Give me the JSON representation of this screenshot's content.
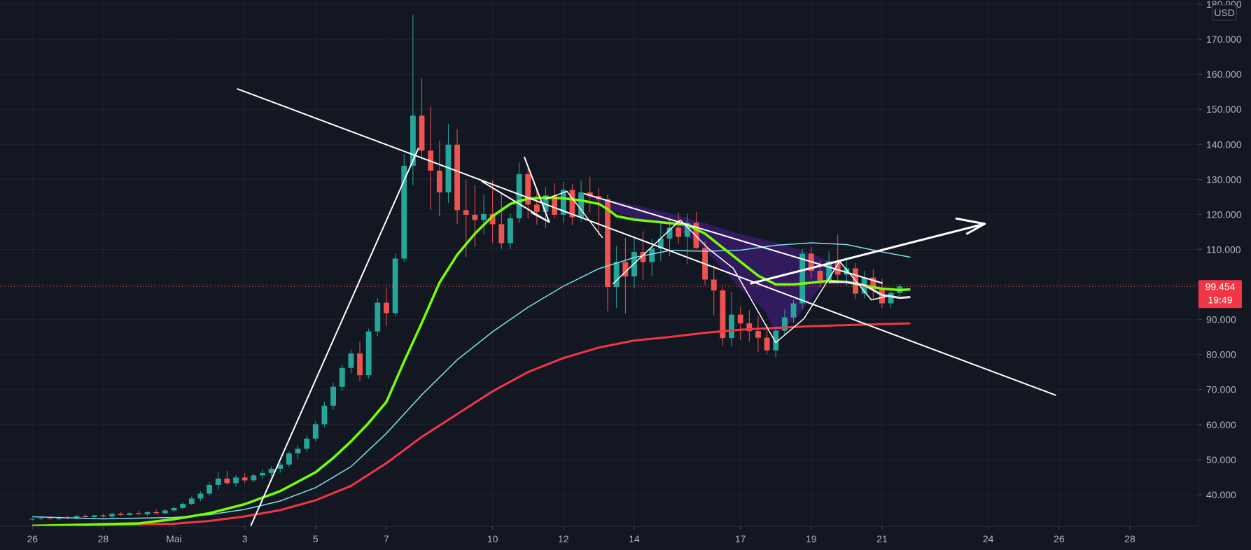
{
  "chart_data": {
    "type": "candlestick",
    "currency": "USD",
    "price_axis": {
      "min": 31000,
      "max": 180000,
      "ticks": [
        40000,
        50000,
        60000,
        70000,
        80000,
        90000,
        100000,
        110000,
        120000,
        130000,
        140000,
        150000,
        160000,
        170000,
        180000
      ],
      "tick_labels": [
        "40.000",
        "50.000",
        "60.000",
        "70.000",
        "80.000",
        "90.000",
        "100.000",
        "110.000",
        "120.000",
        "130.000",
        "140.000",
        "150.000",
        "160.000",
        "170.000",
        "180.000"
      ]
    },
    "time_axis": {
      "min": -4.4,
      "max": 28.8,
      "ticks": [
        {
          "t": -4,
          "label": "26"
        },
        {
          "t": -2,
          "label": "28"
        },
        {
          "t": 0,
          "label": "Mai"
        },
        {
          "t": 2,
          "label": "3"
        },
        {
          "t": 4,
          "label": "5"
        },
        {
          "t": 6,
          "label": "7"
        },
        {
          "t": 9,
          "label": "10"
        },
        {
          "t": 11,
          "label": "12"
        },
        {
          "t": 13,
          "label": "14"
        },
        {
          "t": 16,
          "label": "17"
        },
        {
          "t": 18,
          "label": "19"
        },
        {
          "t": 20,
          "label": "21"
        },
        {
          "t": 23,
          "label": "24"
        },
        {
          "t": 25,
          "label": "26"
        },
        {
          "t": 27,
          "label": "28"
        }
      ]
    },
    "last_price": {
      "value": 99454,
      "label": "99.454",
      "countdown": "19:49"
    },
    "colors": {
      "up": "#26a69a",
      "down": "#ef5350",
      "ma_fast": "#76ff03",
      "ma_mid": "#80deea",
      "ma_slow": "#f23645",
      "drawing": "#ffffff",
      "pattern_fill": "#3a1d6e"
    },
    "grid": true,
    "candles": [
      [
        -4.0,
        33000,
        33400,
        32600,
        33100
      ],
      [
        -3.75,
        33100,
        33600,
        32700,
        33300
      ],
      [
        -3.5,
        33300,
        33800,
        32900,
        33100
      ],
      [
        -3.25,
        33100,
        33700,
        32800,
        33500
      ],
      [
        -3.0,
        33500,
        34000,
        33000,
        33300
      ],
      [
        -2.75,
        33300,
        34100,
        33000,
        33900
      ],
      [
        -2.5,
        33900,
        34400,
        33400,
        33600
      ],
      [
        -2.25,
        33600,
        34300,
        33200,
        34100
      ],
      [
        -2.0,
        34100,
        34600,
        33500,
        33800
      ],
      [
        -1.75,
        33800,
        34800,
        33400,
        34500
      ],
      [
        -1.5,
        34500,
        35100,
        34000,
        34200
      ],
      [
        -1.25,
        34200,
        35000,
        33800,
        34700
      ],
      [
        -1.0,
        34700,
        35400,
        34200,
        34400
      ],
      [
        -0.75,
        34400,
        35300,
        34000,
        35000
      ],
      [
        -0.5,
        35000,
        35700,
        34500,
        34700
      ],
      [
        -0.25,
        34700,
        35900,
        34400,
        35500
      ],
      [
        0.0,
        35500,
        36600,
        35100,
        36200
      ],
      [
        0.25,
        36200,
        37900,
        35900,
        37400
      ],
      [
        0.5,
        37400,
        39500,
        37000,
        38900
      ],
      [
        0.75,
        38900,
        41000,
        38200,
        40300
      ],
      [
        1.0,
        40300,
        43500,
        39700,
        42800
      ],
      [
        1.25,
        42800,
        46500,
        41500,
        44600
      ],
      [
        1.5,
        44600,
        46900,
        42800,
        43300
      ],
      [
        1.75,
        43300,
        45600,
        42300,
        44900
      ],
      [
        2.0,
        44900,
        46200,
        43400,
        44100
      ],
      [
        2.25,
        44100,
        46000,
        43500,
        45500
      ],
      [
        2.5,
        45500,
        47200,
        44600,
        46200
      ],
      [
        2.75,
        46200,
        48100,
        45200,
        47400
      ],
      [
        3.0,
        47400,
        49400,
        46300,
        48600
      ],
      [
        3.25,
        48600,
        52400,
        47900,
        51800
      ],
      [
        3.5,
        51800,
        54200,
        50100,
        53100
      ],
      [
        3.75,
        53100,
        56800,
        52300,
        56000
      ],
      [
        4.0,
        56000,
        61000,
        55200,
        60100
      ],
      [
        4.25,
        60100,
        66500,
        59300,
        65400
      ],
      [
        4.5,
        65400,
        71900,
        64200,
        70800
      ],
      [
        4.75,
        70800,
        77100,
        69600,
        76200
      ],
      [
        5.0,
        76200,
        81400,
        74700,
        80300
      ],
      [
        5.25,
        80300,
        83700,
        72400,
        74100
      ],
      [
        5.5,
        74100,
        87400,
        73200,
        86600
      ],
      [
        5.75,
        86600,
        96100,
        85200,
        94800
      ],
      [
        6.0,
        94800,
        99100,
        88200,
        91800
      ],
      [
        6.25,
        91800,
        108800,
        90900,
        107400
      ],
      [
        6.5,
        107400,
        137200,
        106400,
        133900
      ],
      [
        6.75,
        133900,
        177000,
        128300,
        148200
      ],
      [
        7.0,
        148200,
        158900,
        135600,
        138200
      ],
      [
        7.25,
        138200,
        150800,
        121300,
        132500
      ],
      [
        7.5,
        132500,
        141100,
        119500,
        126300
      ],
      [
        7.75,
        126300,
        145800,
        123300,
        139900
      ],
      [
        8.0,
        139900,
        144400,
        117300,
        121200
      ],
      [
        8.25,
        121200,
        129800,
        107800,
        119900
      ],
      [
        8.5,
        119900,
        128400,
        110700,
        118400
      ],
      [
        8.75,
        118400,
        125600,
        114400,
        120100
      ],
      [
        9.0,
        120100,
        129800,
        111800,
        117200
      ],
      [
        9.25,
        117200,
        125800,
        110200,
        111800
      ],
      [
        9.5,
        111800,
        120300,
        110100,
        118900
      ],
      [
        9.75,
        118900,
        134800,
        117500,
        131500
      ],
      [
        10.0,
        131500,
        133900,
        118700,
        122800
      ],
      [
        10.25,
        122800,
        126900,
        117100,
        120700
      ],
      [
        10.5,
        120700,
        127800,
        116100,
        125400
      ],
      [
        10.75,
        125400,
        128900,
        118900,
        119900
      ],
      [
        11.0,
        119900,
        129300,
        117600,
        127000
      ],
      [
        11.25,
        127000,
        128600,
        116900,
        119200
      ],
      [
        11.5,
        119200,
        129600,
        117900,
        126300
      ],
      [
        11.75,
        126300,
        130700,
        120500,
        125200
      ],
      [
        12.0,
        125200,
        127600,
        113900,
        124300
      ],
      [
        12.25,
        124300,
        125600,
        92300,
        99300
      ],
      [
        12.5,
        99300,
        111000,
        93300,
        106400
      ],
      [
        12.75,
        106400,
        113300,
        91600,
        102300
      ],
      [
        13.0,
        102300,
        113200,
        98900,
        109300
      ],
      [
        13.25,
        109300,
        115200,
        101400,
        106400
      ],
      [
        13.5,
        106400,
        113100,
        102300,
        110300
      ],
      [
        13.75,
        110300,
        117500,
        106600,
        113100
      ],
      [
        14.0,
        113100,
        118700,
        108100,
        116200
      ],
      [
        14.25,
        116200,
        120500,
        111700,
        113600
      ],
      [
        14.5,
        113600,
        120300,
        105700,
        117600
      ],
      [
        14.75,
        117600,
        120700,
        110100,
        110400
      ],
      [
        15.0,
        110400,
        112400,
        99800,
        101400
      ],
      [
        15.25,
        101400,
        105400,
        91200,
        98300
      ],
      [
        15.5,
        98300,
        99400,
        82500,
        84700
      ],
      [
        15.75,
        84700,
        97900,
        82400,
        91400
      ],
      [
        16.0,
        91400,
        93600,
        84100,
        88900
      ],
      [
        16.25,
        88900,
        92700,
        83700,
        86700
      ],
      [
        16.5,
        86700,
        90900,
        80700,
        84800
      ],
      [
        16.75,
        84800,
        88600,
        80000,
        81200
      ],
      [
        17.0,
        81200,
        88200,
        79100,
        86800
      ],
      [
        17.25,
        86800,
        92800,
        85800,
        90600
      ],
      [
        17.5,
        90600,
        95600,
        89000,
        94600
      ],
      [
        17.75,
        94600,
        110200,
        93100,
        108800
      ],
      [
        18.0,
        108800,
        110800,
        101700,
        103900
      ],
      [
        18.25,
        103900,
        106900,
        99200,
        101100
      ],
      [
        18.5,
        101100,
        109500,
        100100,
        106600
      ],
      [
        18.75,
        106600,
        114200,
        100700,
        102800
      ],
      [
        19.0,
        102800,
        107600,
        99600,
        104600
      ],
      [
        19.25,
        104600,
        106100,
        95800,
        97400
      ],
      [
        19.5,
        97400,
        103900,
        96000,
        102000
      ],
      [
        19.75,
        102000,
        104300,
        95800,
        98600
      ],
      [
        20.0,
        98600,
        101600,
        93200,
        94600
      ],
      [
        20.25,
        94600,
        98200,
        93300,
        97600
      ],
      [
        20.5,
        97600,
        100100,
        96700,
        99454
      ]
    ],
    "ma_fast": [
      [
        -4,
        31100
      ],
      [
        -1,
        31800
      ],
      [
        0,
        33000
      ],
      [
        1,
        34700
      ],
      [
        2,
        37300
      ],
      [
        3,
        41000
      ],
      [
        4,
        46400
      ],
      [
        4.5,
        50500
      ],
      [
        5,
        55200
      ],
      [
        5.5,
        60500
      ],
      [
        6,
        66500
      ],
      [
        6.5,
        78000
      ],
      [
        7,
        89000
      ],
      [
        7.5,
        100500
      ],
      [
        8,
        108500
      ],
      [
        8.5,
        114500
      ],
      [
        9,
        119500
      ],
      [
        9.5,
        123000
      ],
      [
        10,
        124500
      ],
      [
        10.5,
        124800
      ],
      [
        11,
        124600
      ],
      [
        11.5,
        124000
      ],
      [
        12,
        123000
      ],
      [
        12.25,
        121500
      ],
      [
        12.5,
        119500
      ],
      [
        13,
        118500
      ],
      [
        13.5,
        118000
      ],
      [
        14,
        117500
      ],
      [
        14.5,
        117000
      ],
      [
        15,
        114500
      ],
      [
        15.5,
        110500
      ],
      [
        16,
        106500
      ],
      [
        16.5,
        102500
      ],
      [
        17,
        100000
      ],
      [
        17.5,
        100000
      ],
      [
        18,
        100500
      ],
      [
        18.5,
        101000
      ],
      [
        19,
        100700
      ],
      [
        19.5,
        99700
      ],
      [
        20,
        98800
      ],
      [
        20.5,
        98400
      ],
      [
        20.8,
        98600
      ]
    ],
    "ma_mid": [
      [
        -4,
        33700
      ],
      [
        -2,
        33100
      ],
      [
        0,
        33500
      ],
      [
        1,
        34300
      ],
      [
        2,
        35800
      ],
      [
        3,
        38200
      ],
      [
        4,
        42000
      ],
      [
        5,
        48000
      ],
      [
        6,
        57500
      ],
      [
        7,
        68500
      ],
      [
        8,
        78500
      ],
      [
        9,
        86500
      ],
      [
        10,
        93500
      ],
      [
        11,
        99500
      ],
      [
        12,
        104500
      ],
      [
        13,
        107700
      ],
      [
        14,
        109700
      ],
      [
        15,
        109500
      ],
      [
        16,
        109800
      ],
      [
        17,
        111200
      ],
      [
        18,
        111900
      ],
      [
        19,
        111400
      ],
      [
        20,
        109300
      ],
      [
        20.8,
        107800
      ]
    ],
    "ma_slow": [
      [
        -4,
        31200
      ],
      [
        -2,
        31400
      ],
      [
        0,
        31700
      ],
      [
        1,
        32500
      ],
      [
        2,
        33800
      ],
      [
        3,
        35600
      ],
      [
        4,
        38400
      ],
      [
        5,
        42500
      ],
      [
        6,
        49000
      ],
      [
        7,
        56500
      ],
      [
        8,
        63000
      ],
      [
        9,
        69500
      ],
      [
        10,
        75000
      ],
      [
        11,
        79000
      ],
      [
        12,
        82000
      ],
      [
        13,
        84000
      ],
      [
        14,
        85000
      ],
      [
        15,
        86200
      ],
      [
        16,
        87100
      ],
      [
        17,
        87600
      ],
      [
        18,
        88100
      ],
      [
        19,
        88400
      ],
      [
        20,
        88700
      ],
      [
        20.8,
        88900
      ]
    ],
    "ma_ext": [
      [
        18.5,
        100700
      ],
      [
        19.0,
        100700
      ],
      [
        19.5,
        99800
      ],
      [
        20.0,
        97000
      ],
      [
        20.5,
        96200
      ],
      [
        20.8,
        96400
      ]
    ],
    "pattern_fill": [
      [
        11.6,
        125900
      ],
      [
        12.3,
        121300
      ],
      [
        13.3,
        118000
      ],
      [
        14.1,
        116900
      ],
      [
        15.0,
        110000
      ],
      [
        15.9,
        99900
      ],
      [
        16.7,
        92400
      ],
      [
        17.0,
        85800
      ],
      [
        17.6,
        90600
      ],
      [
        18.0,
        96100
      ],
      [
        18.8,
        105400
      ],
      [
        18.0,
        108900
      ],
      [
        17.0,
        112000
      ],
      [
        16.0,
        114300
      ],
      [
        15.0,
        117500
      ],
      [
        14.0,
        120300
      ],
      [
        13.0,
        122700
      ],
      [
        12.0,
        124800
      ]
    ],
    "drawings": {
      "main_trendline": [
        [
          1.8,
          155800
        ],
        [
          24.9,
          68400
        ]
      ],
      "steep_trendline": [
        [
          2.1,
          29500
        ],
        [
          6.9,
          138800
        ]
      ],
      "pattern_top": [
        [
          11.6,
          125900
        ],
        [
          20.0,
          100400
        ]
      ],
      "pattern_lows": [
        [
          12.4,
          100200
        ],
        [
          13.0,
          106000
        ],
        [
          14.3,
          118400
        ],
        [
          15.1,
          110200
        ],
        [
          15.8,
          104600
        ],
        [
          17.0,
          83400
        ],
        [
          17.8,
          90300
        ],
        [
          18.8,
          106600
        ],
        [
          19.7,
          95600
        ],
        [
          20.2,
          96800
        ]
      ],
      "left_zigzag": [
        [
          10.5,
          124400
        ],
        [
          11.1,
          126600
        ],
        [
          12.1,
          113400
        ]
      ],
      "down_arrow": [
        [
          9.9,
          136300
        ],
        [
          10.6,
          117800
        ],
        [
          8.7,
          129400
        ]
      ],
      "down_arrow_head": [
        [
          10.6,
          117800
        ],
        [
          10.1,
          120500
        ]
      ],
      "neck_arrow": [
        [
          16.3,
          100300
        ],
        [
          22.9,
          117300
        ]
      ],
      "neck_arrow_head": [
        [
          22.1,
          118800
        ],
        [
          22.9,
          117300
        ],
        [
          22.4,
          114500
        ]
      ]
    }
  }
}
